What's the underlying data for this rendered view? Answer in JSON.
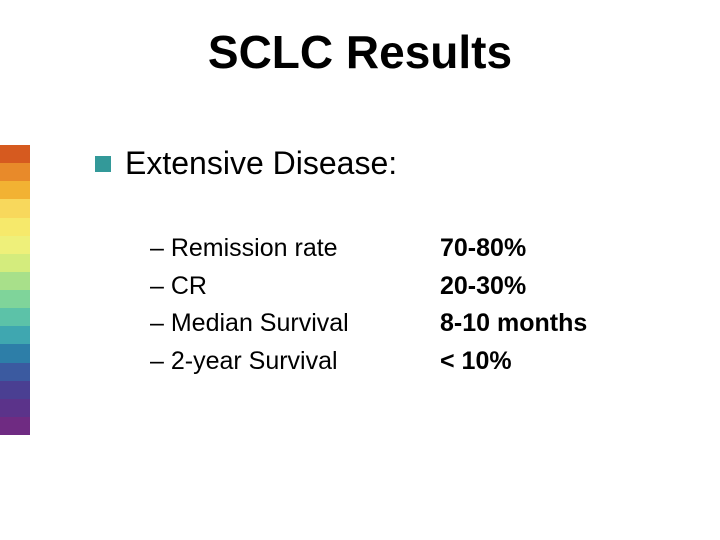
{
  "title": "SCLC Results",
  "heading": {
    "bullet_color": "#339999",
    "text": "Extensive Disease:"
  },
  "items": [
    {
      "label": "– Remission rate",
      "value": "70-80%"
    },
    {
      "label": "– CR",
      "value": "20-30%"
    },
    {
      "label": "– Median Survival",
      "value": "8-10 months"
    },
    {
      "label": "– 2-year Survival",
      "value": "< 10%"
    }
  ],
  "stripe_colors": [
    "#d65a1f",
    "#e88a2a",
    "#f2b233",
    "#f8d85c",
    "#f6e96b",
    "#eef07a",
    "#d4ec7d",
    "#a8e08a",
    "#7fd49a",
    "#5cc2a8",
    "#3fa7b0",
    "#2d7ea8",
    "#3b5aa0",
    "#4a3f92",
    "#5b338a",
    "#6f2b82"
  ]
}
